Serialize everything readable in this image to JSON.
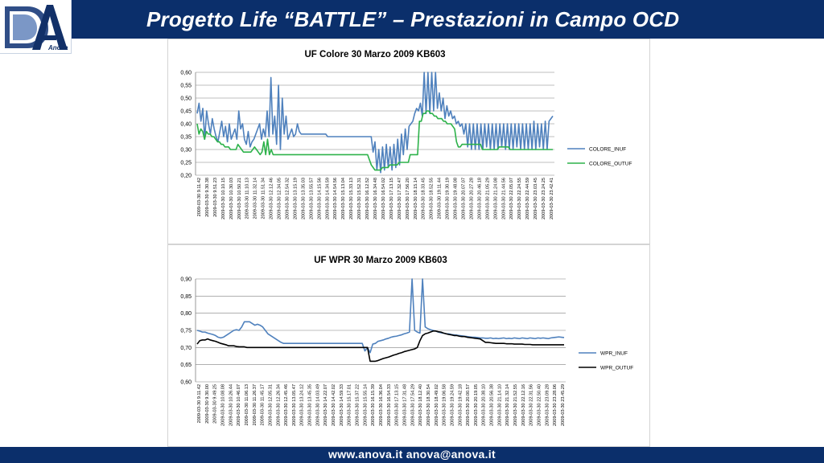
{
  "header": {
    "title": "Progetto Life “BATTLE” – Prestazioni in Campo OCD",
    "logo_text": "Anova"
  },
  "footer": {
    "contact": "www.anova.it   anova@anova.it"
  },
  "colors": {
    "header_bg": "#0b2f6b",
    "inuf": "#4f81bd",
    "outuf_colore": "#2db24a",
    "outuf_wpr": "#000000"
  },
  "chart_data": [
    {
      "type": "line",
      "title": "UF Colore 30 Marzo 2009 KB603",
      "ylim": [
        0.2,
        0.6
      ],
      "yticks": [
        "0,60",
        "0,55",
        "0,50",
        "0,45",
        "0,40",
        "0,35",
        "0,30",
        "0,25",
        "0,20"
      ],
      "grid": true,
      "legend_position": "right",
      "x_labels": [
        "2009-03-30 9.11.42",
        "2009-03-30 9.30.38",
        "2009-03-30 9.51.23",
        "2009-03-30 10.10.15",
        "2009-03-30 10.30.03",
        "2009-03-30 10.50.21",
        "2009-03-30 11.10.13",
        "2009-03-30 11.32.14",
        "2009-03-30 11.51.34",
        "2009-03-30 12.12.46",
        "2009-03-30 12.34.05",
        "2009-03-30 12.54.32",
        "2009-03-30 13.15.19",
        "2009-03-30 13.35.03",
        "2009-03-30 13.55.57",
        "2009-03-30 14.15.56",
        "2009-03-30 14.34.59",
        "2009-03-30 14.54.56",
        "2009-03-30 15.13.04",
        "2009-03-30 15.33.13",
        "2009-03-30 15.52.31",
        "2009-03-30 16.12.52",
        "2009-03-30 16.34.48",
        "2009-03-30 16.54.02",
        "2009-03-30 17.13.15",
        "2009-03-30 17.32.47",
        "2009-03-30 17.56.20",
        "2009-03-30 18.15.14",
        "2009-03-30 18.33.45",
        "2009-03-30 18.52.55",
        "2009-03-30 19.11.44",
        "2009-03-30 19.30.19",
        "2009-03-30 19.48.08",
        "2009-03-30 20.07.07",
        "2009-03-30 20.27.28",
        "2009-03-30 20.46.18",
        "2009-03-30 21.05.29",
        "2009-03-30 21.24.08",
        "2009-03-30 21.44.56",
        "2009-03-30 22.05.07",
        "2009-03-30 22.24.55",
        "2009-03-30 22.44.59",
        "2009-03-30 23.03.45",
        "2009-03-30 23.24.25",
        "2009-03-30 23.42.41"
      ],
      "series": [
        {
          "name": "COLORE_INUF",
          "color": "#4f81bd",
          "values": [
            0.44,
            0.48,
            0.41,
            0.46,
            0.34,
            0.45,
            0.4,
            0.36,
            0.42,
            0.38,
            0.35,
            0.33,
            0.37,
            0.41,
            0.35,
            0.39,
            0.33,
            0.4,
            0.34,
            0.36,
            0.38,
            0.34,
            0.45,
            0.38,
            0.4,
            0.34,
            0.32,
            0.37,
            0.31,
            0.33,
            0.34,
            0.36,
            0.38,
            0.4,
            0.34,
            0.38,
            0.35,
            0.45,
            0.35,
            0.58,
            0.36,
            0.43,
            0.32,
            0.55,
            0.3,
            0.5,
            0.36,
            0.43,
            0.34,
            0.36,
            0.38,
            0.35,
            0.36,
            0.4,
            0.37,
            0.36,
            0.36,
            0.36,
            0.36,
            0.36,
            0.36,
            0.36,
            0.36,
            0.36,
            0.36,
            0.36,
            0.36,
            0.36,
            0.36,
            0.35,
            0.35,
            0.35,
            0.35,
            0.35,
            0.35,
            0.35,
            0.35,
            0.35,
            0.35,
            0.35,
            0.35,
            0.35,
            0.35,
            0.35,
            0.35,
            0.35,
            0.35,
            0.35,
            0.35,
            0.35,
            0.35,
            0.35,
            0.35,
            0.29,
            0.33,
            0.22,
            0.3,
            0.21,
            0.31,
            0.22,
            0.32,
            0.23,
            0.31,
            0.22,
            0.32,
            0.23,
            0.34,
            0.24,
            0.36,
            0.28,
            0.38,
            0.3,
            0.39,
            0.4,
            0.41,
            0.44,
            0.46,
            0.45,
            0.48,
            0.43,
            0.6,
            0.44,
            0.6,
            0.44,
            0.6,
            0.45,
            0.6,
            0.46,
            0.52,
            0.45,
            0.5,
            0.42,
            0.47,
            0.43,
            0.45,
            0.42,
            0.43,
            0.4,
            0.41,
            0.39,
            0.4,
            0.36,
            0.4,
            0.31,
            0.4,
            0.3,
            0.4,
            0.3,
            0.4,
            0.3,
            0.4,
            0.3,
            0.4,
            0.31,
            0.4,
            0.3,
            0.4,
            0.3,
            0.4,
            0.3,
            0.4,
            0.31,
            0.4,
            0.3,
            0.4,
            0.3,
            0.4,
            0.3,
            0.4,
            0.31,
            0.4,
            0.3,
            0.4,
            0.3,
            0.4,
            0.3,
            0.4,
            0.3,
            0.41,
            0.3,
            0.4,
            0.31,
            0.4,
            0.3,
            0.41,
            0.3,
            0.41,
            0.42,
            0.43
          ]
        },
        {
          "name": "COLORE_OUTUF",
          "color": "#2db24a",
          "values": [
            0.4,
            0.36,
            0.38,
            0.37,
            0.34,
            0.37,
            0.36,
            0.36,
            0.35,
            0.35,
            0.34,
            0.33,
            0.33,
            0.32,
            0.32,
            0.31,
            0.31,
            0.31,
            0.3,
            0.3,
            0.3,
            0.3,
            0.32,
            0.31,
            0.3,
            0.29,
            0.29,
            0.29,
            0.29,
            0.29,
            0.3,
            0.31,
            0.3,
            0.29,
            0.28,
            0.29,
            0.33,
            0.28,
            0.34,
            0.28,
            0.3,
            0.28,
            0.28,
            0.28,
            0.28,
            0.28,
            0.28,
            0.28,
            0.28,
            0.28,
            0.28,
            0.28,
            0.28,
            0.28,
            0.28,
            0.28,
            0.28,
            0.28,
            0.28,
            0.28,
            0.28,
            0.28,
            0.28,
            0.28,
            0.28,
            0.28,
            0.28,
            0.28,
            0.28,
            0.28,
            0.28,
            0.28,
            0.28,
            0.28,
            0.28,
            0.28,
            0.28,
            0.28,
            0.28,
            0.28,
            0.28,
            0.28,
            0.28,
            0.28,
            0.28,
            0.28,
            0.28,
            0.28,
            0.28,
            0.28,
            0.28,
            0.28,
            0.28,
            0.26,
            0.24,
            0.23,
            0.22,
            0.22,
            0.22,
            0.22,
            0.23,
            0.23,
            0.23,
            0.23,
            0.24,
            0.24,
            0.24,
            0.24,
            0.24,
            0.25,
            0.25,
            0.25,
            0.25,
            0.25,
            0.25,
            0.28,
            0.28,
            0.28,
            0.28,
            0.28,
            0.41,
            0.41,
            0.44,
            0.44,
            0.45,
            0.45,
            0.44,
            0.44,
            0.43,
            0.43,
            0.42,
            0.42,
            0.42,
            0.41,
            0.41,
            0.4,
            0.4,
            0.4,
            0.39,
            0.38,
            0.33,
            0.31,
            0.31,
            0.32,
            0.32,
            0.32,
            0.32,
            0.32,
            0.32,
            0.32,
            0.32,
            0.32,
            0.32,
            0.32,
            0.3,
            0.3,
            0.3,
            0.3,
            0.3,
            0.3,
            0.3,
            0.3,
            0.3,
            0.31,
            0.31,
            0.31,
            0.31,
            0.31,
            0.31,
            0.3,
            0.3,
            0.3,
            0.3,
            0.3,
            0.3,
            0.3,
            0.3,
            0.3,
            0.3,
            0.3,
            0.3,
            0.3,
            0.3,
            0.3,
            0.3,
            0.3,
            0.3,
            0.3,
            0.3,
            0.3,
            0.3,
            0.3,
            0.3
          ]
        }
      ]
    },
    {
      "type": "line",
      "title": "UF WPR 30 Marzo 2009 KB603",
      "ylim": [
        0.6,
        0.9
      ],
      "yticks": [
        "0,90",
        "0,85",
        "0,80",
        "0,75",
        "0,70",
        "0,65",
        "0,60"
      ],
      "grid": true,
      "legend_position": "right",
      "x_labels": [
        "2009-03-30 9.11.42",
        "2009-03-30 9.30.00",
        "2009-03-30 9.49.25",
        "2009-03-30 10.08.08",
        "2009-03-30 10.26.44",
        "2009-03-30 10.46.07",
        "2009-03-30 11.06.13",
        "2009-03-30 11.26.37",
        "2009-03-30 11.45.17",
        "2009-03-30 12.05.31",
        "2009-03-30 12.26.34",
        "2009-03-30 12.45.46",
        "2009-03-30 13.05.47",
        "2009-03-30 13.24.12",
        "2009-03-30 13.45.35",
        "2009-03-30 14.03.49",
        "2009-03-30 14.22.07",
        "2009-03-30 14.42.02",
        "2009-03-30 14.59.33",
        "2009-03-30 15.17.01",
        "2009-03-30 15.37.22",
        "2009-03-30 15.55.14",
        "2009-03-30 16.15.39",
        "2009-03-30 16.36.04",
        "2009-03-30 16.54.33",
        "2009-03-30 17.13.15",
        "2009-03-30 17.31.48",
        "2009-03-30 17.54.29",
        "2009-03-30 18.12.40",
        "2009-03-30 18.30.54",
        "2009-03-30 18.49.02",
        "2009-03-30 19.06.58",
        "2009-03-30 19.24.59",
        "2009-03-30 19.42.18",
        "2009-03-30 20.00.57",
        "2009-03-30 20.19.05",
        "2009-03-30 20.38.10",
        "2009-03-30 20.56.38",
        "2009-03-30 21.14.10",
        "2009-03-30 21.32.14",
        "2009-03-30 21.52.55",
        "2009-03-30 22.12.16",
        "2009-03-30 22.31.56",
        "2009-03-30 22.50.40",
        "2009-03-30 23.09.28",
        "2009-03-30 23.28.06",
        "2009-03-30 23.45.29"
      ],
      "series": [
        {
          "name": "WPR_INUF",
          "color": "#4f81bd",
          "values": [
            0.75,
            0.748,
            0.745,
            0.745,
            0.742,
            0.74,
            0.738,
            0.735,
            0.73,
            0.728,
            0.73,
            0.735,
            0.74,
            0.745,
            0.75,
            0.752,
            0.75,
            0.76,
            0.775,
            0.775,
            0.775,
            0.77,
            0.765,
            0.768,
            0.765,
            0.76,
            0.75,
            0.74,
            0.735,
            0.73,
            0.725,
            0.72,
            0.715,
            0.712,
            0.712,
            0.712,
            0.712,
            0.712,
            0.712,
            0.712,
            0.712,
            0.712,
            0.712,
            0.712,
            0.712,
            0.712,
            0.712,
            0.712,
            0.712,
            0.712,
            0.712,
            0.712,
            0.712,
            0.712,
            0.712,
            0.712,
            0.712,
            0.712,
            0.712,
            0.712,
            0.712,
            0.712,
            0.712,
            0.712,
            0.69,
            0.7,
            0.685,
            0.71,
            0.712,
            0.718,
            0.72,
            0.722,
            0.725,
            0.727,
            0.73,
            0.732,
            0.733,
            0.735,
            0.737,
            0.74,
            0.742,
            0.745,
            0.9,
            0.75,
            0.745,
            0.742,
            0.9,
            0.76,
            0.755,
            0.752,
            0.75,
            0.748,
            0.745,
            0.743,
            0.742,
            0.74,
            0.74,
            0.738,
            0.737,
            0.736,
            0.735,
            0.734,
            0.733,
            0.732,
            0.731,
            0.73,
            0.73,
            0.729,
            0.728,
            0.728,
            0.727,
            0.727,
            0.728,
            0.726,
            0.727,
            0.726,
            0.727,
            0.728,
            0.726,
            0.727,
            0.726,
            0.728,
            0.727,
            0.726,
            0.728,
            0.727,
            0.726,
            0.728,
            0.727,
            0.726,
            0.728,
            0.727,
            0.728,
            0.727,
            0.726,
            0.728,
            0.729,
            0.73,
            0.731,
            0.73,
            0.729
          ]
        },
        {
          "name": "WPR_OUTUF",
          "color": "#000000",
          "values": [
            0.71,
            0.72,
            0.722,
            0.722,
            0.725,
            0.722,
            0.72,
            0.718,
            0.715,
            0.712,
            0.71,
            0.708,
            0.705,
            0.705,
            0.705,
            0.703,
            0.702,
            0.702,
            0.702,
            0.7,
            0.7,
            0.7,
            0.7,
            0.7,
            0.7,
            0.7,
            0.7,
            0.7,
            0.7,
            0.7,
            0.7,
            0.7,
            0.7,
            0.7,
            0.7,
            0.7,
            0.7,
            0.7,
            0.7,
            0.7,
            0.7,
            0.7,
            0.7,
            0.7,
            0.7,
            0.7,
            0.7,
            0.7,
            0.7,
            0.7,
            0.7,
            0.7,
            0.7,
            0.7,
            0.7,
            0.7,
            0.7,
            0.7,
            0.7,
            0.7,
            0.7,
            0.7,
            0.7,
            0.7,
            0.7,
            0.7,
            0.66,
            0.66,
            0.66,
            0.662,
            0.665,
            0.668,
            0.67,
            0.672,
            0.675,
            0.678,
            0.68,
            0.683,
            0.685,
            0.688,
            0.69,
            0.692,
            0.694,
            0.696,
            0.7,
            0.72,
            0.735,
            0.74,
            0.742,
            0.745,
            0.748,
            0.748,
            0.746,
            0.745,
            0.742,
            0.74,
            0.738,
            0.737,
            0.735,
            0.735,
            0.733,
            0.732,
            0.732,
            0.73,
            0.729,
            0.728,
            0.727,
            0.726,
            0.725,
            0.72,
            0.715,
            0.715,
            0.714,
            0.713,
            0.712,
            0.712,
            0.712,
            0.712,
            0.711,
            0.711,
            0.711,
            0.71,
            0.71,
            0.71,
            0.71,
            0.709,
            0.709,
            0.709,
            0.708,
            0.708,
            0.708,
            0.708,
            0.708,
            0.708,
            0.708,
            0.708,
            0.708,
            0.708,
            0.708,
            0.708,
            0.708
          ]
        }
      ]
    }
  ]
}
